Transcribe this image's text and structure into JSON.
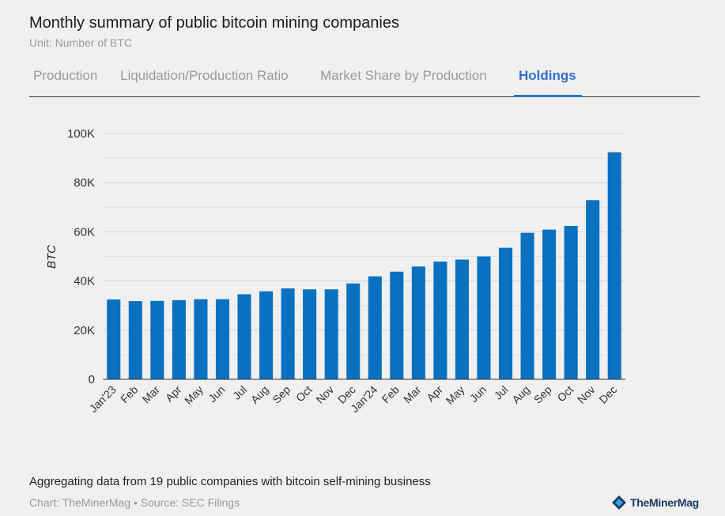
{
  "header": {
    "title": "Monthly summary of public bitcoin mining companies",
    "subtitle": "Unit: Number of BTC"
  },
  "tabs": [
    {
      "label": "Production",
      "active": false
    },
    {
      "label": "Liquidation/Production Ratio",
      "active": false
    },
    {
      "label": "Market Share by Production",
      "active": false
    },
    {
      "label": "Holdings",
      "active": true
    }
  ],
  "colors": {
    "bar": "#0a71c1",
    "accent": "#2f6fd1",
    "grid": "#d3d3d3"
  },
  "chart_data": {
    "type": "bar",
    "ylabel": "BTC",
    "xlabel": "",
    "ylim": [
      0,
      100000
    ],
    "yticks": [
      0,
      20000,
      40000,
      60000,
      80000,
      100000
    ],
    "ytick_labels": [
      "0",
      "20K",
      "40K",
      "60K",
      "80K",
      "100K"
    ],
    "grid": true,
    "categories": [
      "Jan'23",
      "Feb",
      "Mar",
      "Apr",
      "May",
      "Jun",
      "Jul",
      "Aug",
      "Sep",
      "Oct",
      "Nov",
      "Dec",
      "Jan'24",
      "Feb",
      "Mar",
      "Apr",
      "May",
      "Jun",
      "Jul",
      "Aug",
      "Sep",
      "Oct",
      "Nov",
      "Dec"
    ],
    "values": [
      32500,
      31800,
      31900,
      32200,
      32600,
      32600,
      34600,
      35800,
      37000,
      36600,
      36600,
      39000,
      41900,
      43800,
      45900,
      47900,
      48700,
      50000,
      53500,
      59600,
      60900,
      62400,
      72900,
      92400
    ]
  },
  "footer": {
    "note": "Aggregating data from 19 public companies with bitcoin self-mining business",
    "credits": "Chart: TheMinerMag • Source: SEC Filings",
    "logo_text": "TheMinerMag"
  }
}
